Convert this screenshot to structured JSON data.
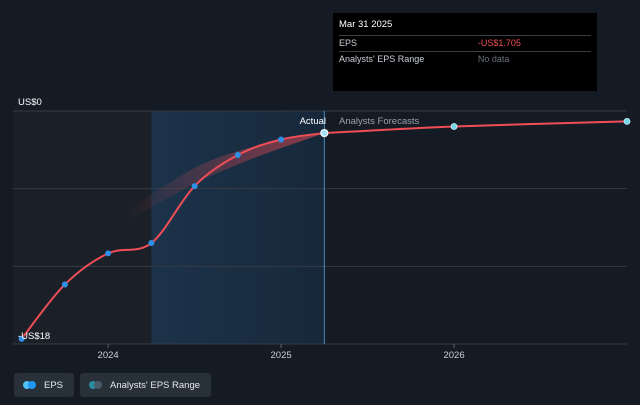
{
  "chart_data": {
    "type": "line",
    "ylim": [
      -18,
      0
    ],
    "ylabels": {
      "top": "US$0",
      "bottom": "-US$18"
    },
    "x_ticks": [
      "2024",
      "2025",
      "2026"
    ],
    "regions": {
      "actual_label": "Actual",
      "forecast_label": "Analysts Forecasts"
    },
    "series": [
      {
        "name": "EPS",
        "kind": "actual",
        "color": "#ef4d57",
        "x": [
          2023.5,
          2023.75,
          2024.0,
          2024.25,
          2024.5,
          2024.75,
          2025.0,
          2025.25
        ],
        "values": [
          -17.6,
          -13.4,
          -11.0,
          -10.2,
          -5.8,
          -3.4,
          -2.2,
          -1.705
        ]
      },
      {
        "name": "EPS Forecast",
        "kind": "forecast",
        "color": "#ef4d57",
        "x": [
          2025.25,
          2026.0,
          2027.0
        ],
        "values": [
          -1.705,
          -1.2,
          -0.8
        ]
      }
    ],
    "range_band": {
      "name": "Analysts' EPS Range",
      "x": [
        2024.1,
        2024.5,
        2024.85,
        2025.1,
        2025.25
      ],
      "upper": [
        -7.8,
        -4.4,
        -2.7,
        -2.0,
        -1.705
      ],
      "lower": [
        -8.6,
        -5.6,
        -3.6,
        -2.4,
        -1.705
      ]
    }
  },
  "tooltip": {
    "date": "Mar 31 2025",
    "rows": [
      {
        "label": "EPS",
        "value": "-US$1.705"
      },
      {
        "label": "Analysts' EPS Range",
        "value": "No data"
      }
    ]
  },
  "legend": {
    "items": [
      {
        "label": "EPS",
        "color_a": "#4fc3f7",
        "color_b": "#2196f3"
      },
      {
        "label": "Analysts' EPS Range",
        "color_a": "#2a8ca0",
        "color_b": "#4a5a68"
      }
    ]
  }
}
